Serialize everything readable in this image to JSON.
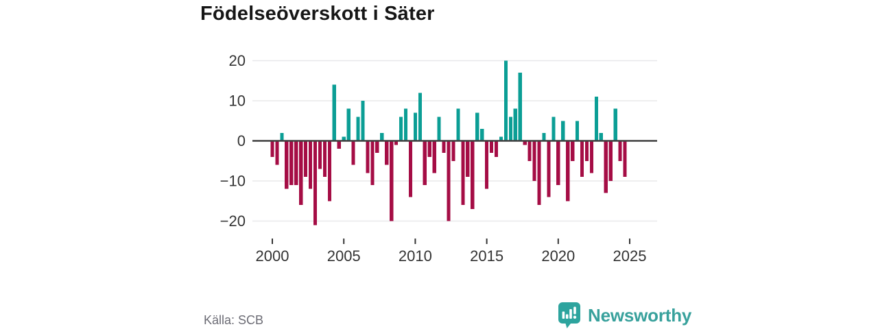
{
  "header": {
    "title": "Födelseöverskott i Säter"
  },
  "footer": {
    "source": "Källa: SCB",
    "brand": "Newsworthy"
  },
  "colors": {
    "positive": "#0b9e95",
    "negative": "#a50d45",
    "axis": "#404040",
    "grid": "#e8e8ea",
    "tick_text": "#333333",
    "muted_text": "#6b6b74",
    "brand_teal": "#38a19c",
    "background": "#ffffff"
  },
  "chart_data": {
    "type": "bar",
    "title": "Födelseöverskott i Säter",
    "xlabel": "",
    "ylabel": "",
    "start_year": 2000,
    "periods_per_year": 3,
    "ylim": [
      -22,
      22
    ],
    "y_ticks": [
      20,
      10,
      0,
      -10,
      -20
    ],
    "y_tick_labels": [
      "20",
      "10",
      "0",
      "−10",
      "−20"
    ],
    "x_ticks": [
      2000,
      2005,
      2010,
      2015,
      2020,
      2025
    ],
    "x_tick_labels": [
      "2000",
      "2005",
      "2010",
      "2015",
      "2020",
      "2025"
    ],
    "grid": true,
    "legend_position": "none",
    "values": [
      -4,
      -6,
      2,
      -12,
      -11,
      -11,
      -16,
      -9,
      -12,
      -21,
      -7,
      -9,
      -15,
      14,
      -2,
      1,
      8,
      -6,
      6,
      10,
      -8,
      -11,
      -3,
      2,
      -6,
      -20,
      -1,
      6,
      8,
      -14,
      7,
      12,
      -11,
      -4,
      -8,
      6,
      -3,
      -20,
      -5,
      8,
      -16,
      -9,
      -17,
      7,
      3,
      -12,
      -3,
      -4,
      1,
      20,
      6,
      8,
      17,
      -1,
      -5,
      -10,
      -16,
      2,
      -14,
      6,
      -11,
      5,
      -15,
      -5,
      5,
      -9,
      -5,
      -8,
      11,
      2,
      -13,
      -10,
      8,
      -5,
      -9
    ]
  }
}
